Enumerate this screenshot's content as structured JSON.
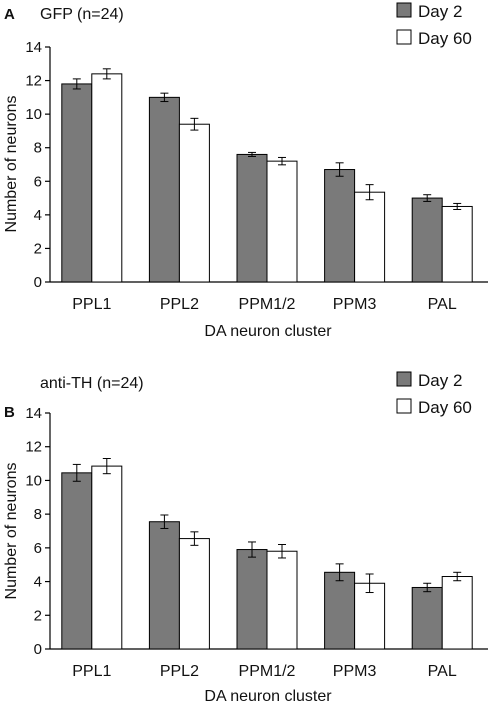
{
  "chart_data": [
    {
      "type": "bar",
      "panel_label": "A",
      "title": "GFP (n=24)",
      "categories": [
        "PPL1",
        "PPL2",
        "PPM1/2",
        "PPM3",
        "PAL"
      ],
      "series": [
        {
          "name": "Day 2",
          "color": "#7a7a7a",
          "values": [
            11.8,
            11.0,
            7.6,
            6.7,
            5.0
          ],
          "errors": [
            0.3,
            0.25,
            0.12,
            0.4,
            0.2
          ]
        },
        {
          "name": "Day 60",
          "color": "#ffffff",
          "values": [
            12.4,
            9.4,
            7.2,
            5.35,
            4.5
          ],
          "errors": [
            0.3,
            0.35,
            0.22,
            0.45,
            0.18
          ]
        }
      ],
      "yticks": [
        0,
        2,
        4,
        6,
        8,
        10,
        12,
        14
      ],
      "ylim": [
        0,
        14
      ],
      "xlabel": "DA neuron cluster",
      "ylabel": "Number of neurons",
      "legend_position": "top-right"
    },
    {
      "type": "bar",
      "panel_label": "B",
      "title": "anti-TH (n=24)",
      "categories": [
        "PPL1",
        "PPL2",
        "PPM1/2",
        "PPM3",
        "PAL"
      ],
      "series": [
        {
          "name": "Day 2",
          "color": "#7a7a7a",
          "values": [
            10.45,
            7.55,
            5.9,
            4.55,
            3.65
          ],
          "errors": [
            0.5,
            0.4,
            0.45,
            0.5,
            0.25
          ]
        },
        {
          "name": "Day 60",
          "color": "#ffffff",
          "values": [
            10.85,
            6.55,
            5.8,
            3.9,
            4.3
          ],
          "errors": [
            0.45,
            0.4,
            0.4,
            0.55,
            0.25
          ]
        }
      ],
      "yticks": [
        0,
        2,
        4,
        6,
        8,
        10,
        12,
        14
      ],
      "ylim": [
        0,
        14
      ],
      "xlabel": "DA neuron cluster",
      "ylabel": "Number of neurons",
      "legend_position": "top-right"
    }
  ]
}
